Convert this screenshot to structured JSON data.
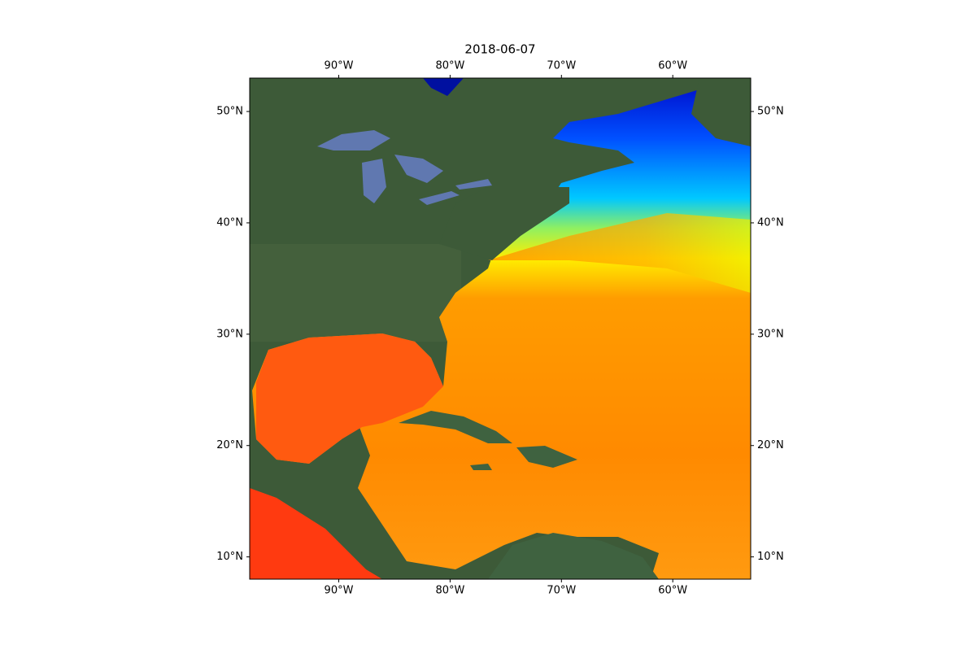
{
  "chart_data": {
    "type": "map",
    "title": "2018-06-07",
    "xlim": [
      -98,
      -53
    ],
    "ylim": [
      8,
      53
    ],
    "xticks": [
      {
        "value": -90,
        "label": "90°W"
      },
      {
        "value": -80,
        "label": "80°W"
      },
      {
        "value": -70,
        "label": "70°W"
      },
      {
        "value": -60,
        "label": "60°W"
      }
    ],
    "yticks": [
      {
        "value": 10,
        "label": "10°N"
      },
      {
        "value": 20,
        "label": "20°N"
      },
      {
        "value": 30,
        "label": "30°N"
      },
      {
        "value": 40,
        "label": "40°N"
      },
      {
        "value": 50,
        "label": "50°N"
      }
    ]
  }
}
